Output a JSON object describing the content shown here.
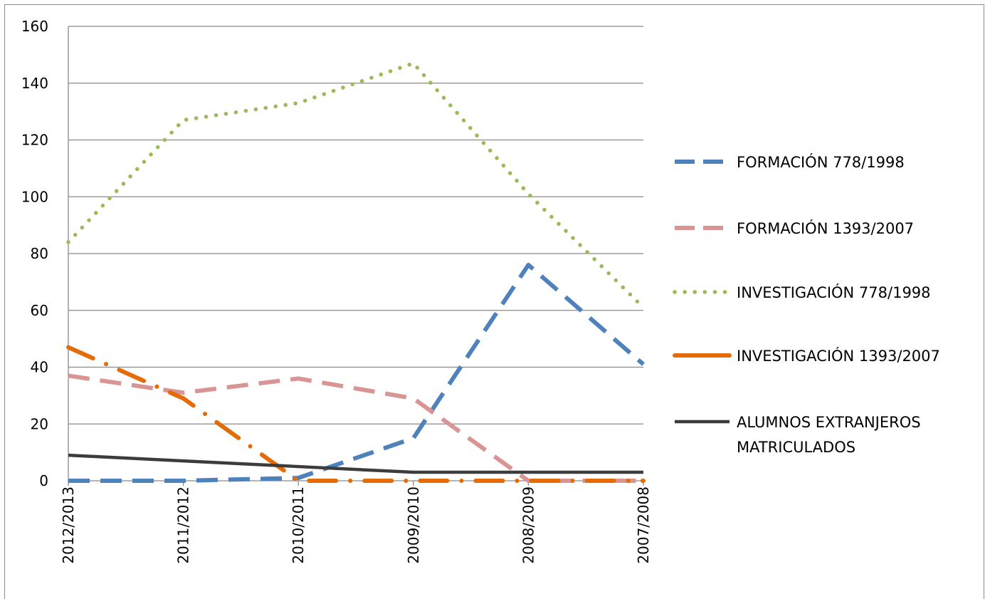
{
  "chart_data": {
    "type": "line",
    "title": "",
    "xlabel": "",
    "ylabel": "",
    "categories": [
      "2012/2013",
      "2011/2012",
      "2010/2011",
      "2009/2010",
      "2008/2009",
      "2007/2008"
    ],
    "ylim": [
      0,
      160
    ],
    "yticks": [
      0,
      20,
      40,
      60,
      80,
      100,
      120,
      140,
      160
    ],
    "grid": true,
    "legend_position": "right",
    "series": [
      {
        "name": "FORMACIÓN 778/1998",
        "values": [
          0,
          0,
          1,
          15,
          76,
          41
        ],
        "color": "#4f81bd",
        "style": "long-dash"
      },
      {
        "name": "FORMACIÓN 1393/2007",
        "values": [
          37,
          31,
          36,
          29,
          0,
          0
        ],
        "color": "#d99594",
        "style": "long-dash"
      },
      {
        "name": "INVESTIGACIÓN 778/1998",
        "values": [
          84,
          127,
          133,
          147,
          101,
          61
        ],
        "color": "#9bbb59",
        "style": "dotted"
      },
      {
        "name": "INVESTIGACIÓN 1393/2007",
        "values": [
          47,
          29,
          0,
          0,
          0,
          0
        ],
        "color": "#e36c09",
        "style": "long-dash-dot"
      },
      {
        "name": "ALUMNOS EXTRANJEROS MATRICULADOS",
        "values": [
          9,
          7,
          5,
          3,
          3,
          3
        ],
        "color": "#3c3c3c",
        "style": "solid"
      }
    ]
  },
  "legend_display": [
    {
      "lines": [
        "FORMACIÓN 778/1998"
      ]
    },
    {
      "lines": [
        "FORMACIÓN 1393/2007"
      ]
    },
    {
      "lines": [
        "INVESTIGACIÓN  778/1998"
      ]
    },
    {
      "lines": [
        "INVESTIGACIÓN  1393/2007"
      ]
    },
    {
      "lines": [
        "ALUMNOS EXTRANJEROS",
        "MATRICULADOS"
      ]
    }
  ]
}
